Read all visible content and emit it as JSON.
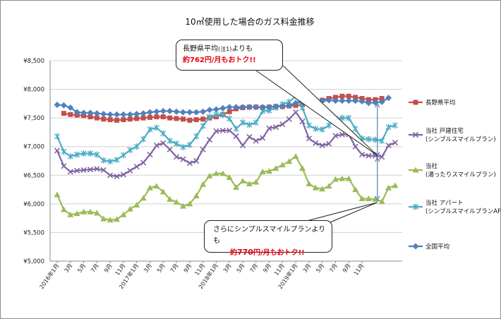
{
  "chart_data": {
    "type": "line",
    "title": "10㎥使用した場合のガス料金推移",
    "ylim": [
      5000,
      8500
    ],
    "yticks": [
      {
        "value": 8500,
        "label": "¥8,500"
      },
      {
        "value": 8000,
        "label": "¥8,000"
      },
      {
        "value": 7500,
        "label": "¥7,500"
      },
      {
        "value": 7000,
        "label": "¥7,000"
      },
      {
        "value": 6500,
        "label": "¥6,500"
      },
      {
        "value": 6000,
        "label": "¥6,000"
      },
      {
        "value": 5500,
        "label": "¥5,500"
      },
      {
        "value": 5000,
        "label": "¥5,000"
      }
    ],
    "x_tick_labels": [
      "2016年1月",
      "3月",
      "5月",
      "7月",
      "9月",
      "11月",
      "2017年1月",
      "3月",
      "5月",
      "7月",
      "9月",
      "11月",
      "2018年1月",
      "3月",
      "5月",
      "7月",
      "9月",
      "11月",
      "2019年1月",
      "3月",
      "5月",
      "7月",
      "9月",
      "11月"
    ],
    "series": [
      {
        "name": "長野県平均",
        "color": "#c0504d",
        "marker": "square",
        "values": [
          null,
          7580,
          7560,
          7550,
          7540,
          7520,
          7500,
          7480,
          7470,
          7460,
          7470,
          7480,
          7490,
          7500,
          7510,
          7520,
          7520,
          7500,
          7490,
          7480,
          7460,
          7470,
          7480,
          7500,
          7520,
          7560,
          7610,
          7660,
          7680,
          7690,
          7690,
          7680,
          7690,
          7700,
          7700,
          7710,
          7720,
          7730,
          7760,
          7790,
          7810,
          7840,
          7860,
          7880,
          7880,
          7860,
          7840,
          7820,
          7820,
          7840,
          null,
          null
        ]
      },
      {
        "name": "当社 戸建住宅\n(シンプルスマイルプラン)",
        "color": "#8064a2",
        "marker": "x",
        "values": [
          6930,
          6660,
          6560,
          6580,
          6590,
          6600,
          6610,
          6590,
          6500,
          6480,
          6510,
          6580,
          6650,
          6720,
          6860,
          7020,
          7060,
          6950,
          6820,
          6780,
          6710,
          6750,
          6950,
          7120,
          7270,
          7280,
          7280,
          7180,
          7020,
          7170,
          7100,
          7150,
          7320,
          7340,
          7390,
          7480,
          7600,
          7440,
          7140,
          7060,
          7020,
          7050,
          7190,
          7210,
          7210,
          7000,
          6860,
          6840,
          6840,
          6820,
          7020,
          7070
        ]
      },
      {
        "name": "当社\n(湯ったりスマイルプラン)",
        "color": "#9bbb59",
        "marker": "triangle",
        "values": [
          6160,
          5900,
          5810,
          5830,
          5860,
          5860,
          5840,
          5740,
          5720,
          5730,
          5810,
          5910,
          5980,
          6100,
          6280,
          6310,
          6210,
          6080,
          6030,
          5960,
          6000,
          6140,
          6340,
          6490,
          6530,
          6530,
          6460,
          6290,
          6400,
          6350,
          6380,
          6560,
          6570,
          6620,
          6680,
          6740,
          6830,
          6620,
          6350,
          6280,
          6260,
          6310,
          6430,
          6440,
          6440,
          6250,
          6090,
          6090,
          6080,
          6040,
          6280,
          6320
        ]
      },
      {
        "name": "当社 アパート\n(シンプルスマイルプランAP)",
        "color": "#4bacc6",
        "marker": "asterisk",
        "values": [
          7180,
          6910,
          6830,
          6860,
          6880,
          6880,
          6860,
          6760,
          6740,
          6770,
          6850,
          6940,
          7000,
          7130,
          7300,
          7330,
          7230,
          7100,
          7050,
          6990,
          7030,
          7180,
          7360,
          7520,
          7560,
          7560,
          7490,
          7310,
          7420,
          7380,
          7420,
          7620,
          7630,
          7680,
          7740,
          7780,
          7880,
          7680,
          7370,
          7310,
          7300,
          7370,
          7490,
          7500,
          7500,
          7310,
          7140,
          7130,
          7120,
          7100,
          7340,
          7370
        ]
      },
      {
        "name": "全国平均",
        "color": "#4f81bd",
        "marker": "diamond",
        "values": [
          7730,
          7720,
          7680,
          7600,
          7590,
          7590,
          7580,
          7570,
          7560,
          7560,
          7560,
          7560,
          7570,
          7580,
          7600,
          7610,
          7620,
          7620,
          7610,
          7600,
          7600,
          7600,
          7610,
          7640,
          7650,
          7670,
          7690,
          7690,
          7690,
          7690,
          7690,
          7690,
          7690,
          7700,
          7700,
          7720,
          7760,
          7790,
          7800,
          7800,
          7800,
          7810,
          7800,
          7800,
          7800,
          7800,
          7790,
          7760,
          7770,
          7780,
          7850,
          null
        ]
      }
    ],
    "annotations": {
      "callout1_line1": "長野県平均",
      "callout1_note": "(注1)",
      "callout1_line1_rest": "よりも",
      "callout1_line2": "約762円/月もおトク!!",
      "callout2_line1": "さらにシンプルスマイルプランよりも",
      "callout2_line2_a": "約",
      "callout2_line2_b": "770",
      "callout2_line2_c": "円/月もおトク!!"
    }
  }
}
